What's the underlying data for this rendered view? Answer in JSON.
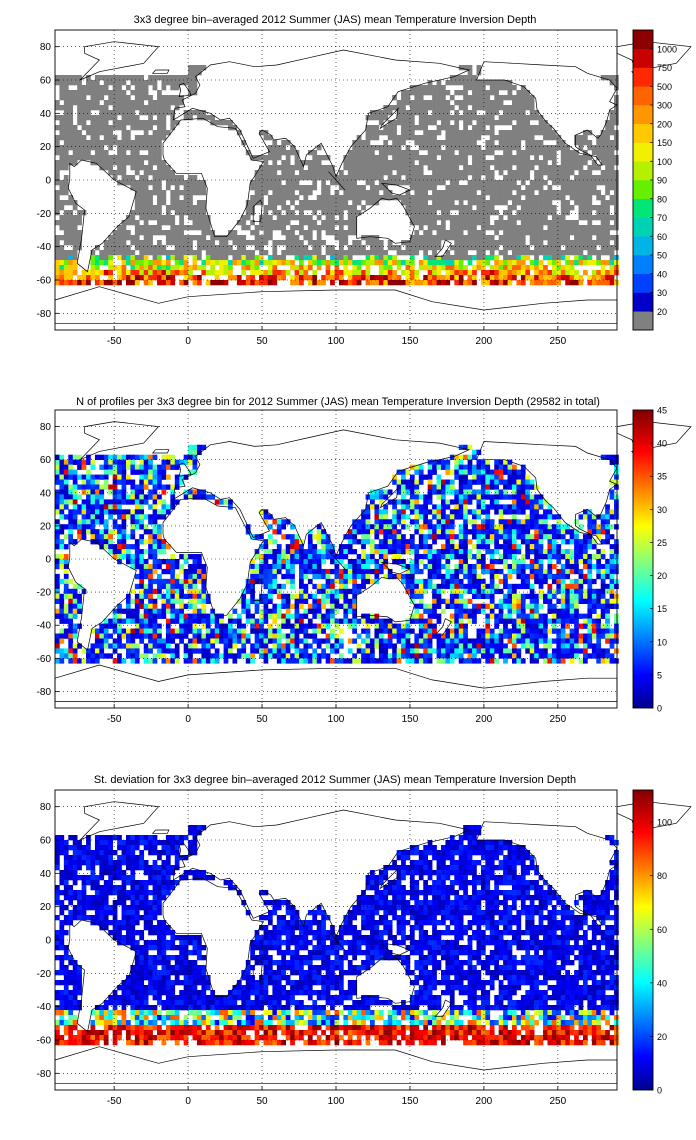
{
  "chart_data": [
    {
      "type": "heatmap",
      "title": "3x3 degree bin–averaged 2012 Summer (JAS) mean Temperature Inversion Depth",
      "x_ticks": [
        -50,
        0,
        50,
        100,
        150,
        200,
        250
      ],
      "y_ticks": [
        80,
        60,
        40,
        20,
        0,
        -20,
        -40,
        -60,
        -80
      ],
      "xlim": [
        -90,
        290
      ],
      "ylim": [
        -90,
        90
      ],
      "grid": true,
      "colorbar": {
        "scale": "categorical",
        "tick_labels": [
          "20",
          "30",
          "40",
          "50",
          "60",
          "70",
          "80",
          "90",
          "100",
          "150",
          "200",
          "300",
          "500",
          "750",
          "1000"
        ],
        "colors": [
          "#808080",
          "#0000c8",
          "#0040ff",
          "#0080ff",
          "#00b4e6",
          "#00d2b4",
          "#00e678",
          "#64f000",
          "#b4f000",
          "#f0f000",
          "#ffc800",
          "#ff9600",
          "#ff6400",
          "#ff2800",
          "#c80000",
          "#8c0000"
        ]
      }
    },
    {
      "type": "heatmap",
      "title": "N of profiles per 3x3 degree bin for 2012 Summer (JAS) mean Temperature Inversion Depth  (29582 in total)",
      "x_ticks": [
        -50,
        0,
        50,
        100,
        150,
        200,
        250
      ],
      "y_ticks": [
        80,
        60,
        40,
        20,
        0,
        -20,
        -40,
        -60,
        -80
      ],
      "xlim": [
        -90,
        290
      ],
      "ylim": [
        -90,
        90
      ],
      "grid": true,
      "colorbar": {
        "scale": "linear",
        "range": [
          0,
          45
        ],
        "tick_labels": [
          "0",
          "5",
          "10",
          "15",
          "20",
          "25",
          "30",
          "35",
          "40",
          "45"
        ]
      }
    },
    {
      "type": "heatmap",
      "title": "St. deviation for 3x3 degree bin–averaged 2012 Summer (JAS) mean Temperature Inversion Depth",
      "x_ticks": [
        -50,
        0,
        50,
        100,
        150,
        200,
        250
      ],
      "y_ticks": [
        80,
        60,
        40,
        20,
        0,
        -20,
        -40,
        -60,
        -80
      ],
      "xlim": [
        -90,
        290
      ],
      "ylim": [
        -90,
        90
      ],
      "grid": true,
      "colorbar": {
        "scale": "linear",
        "range": [
          0,
          112
        ],
        "tick_labels": [
          "0",
          "20",
          "40",
          "60",
          "80",
          "100"
        ],
        "tick_values": [
          0,
          20,
          40,
          60,
          80,
          100
        ]
      }
    }
  ]
}
